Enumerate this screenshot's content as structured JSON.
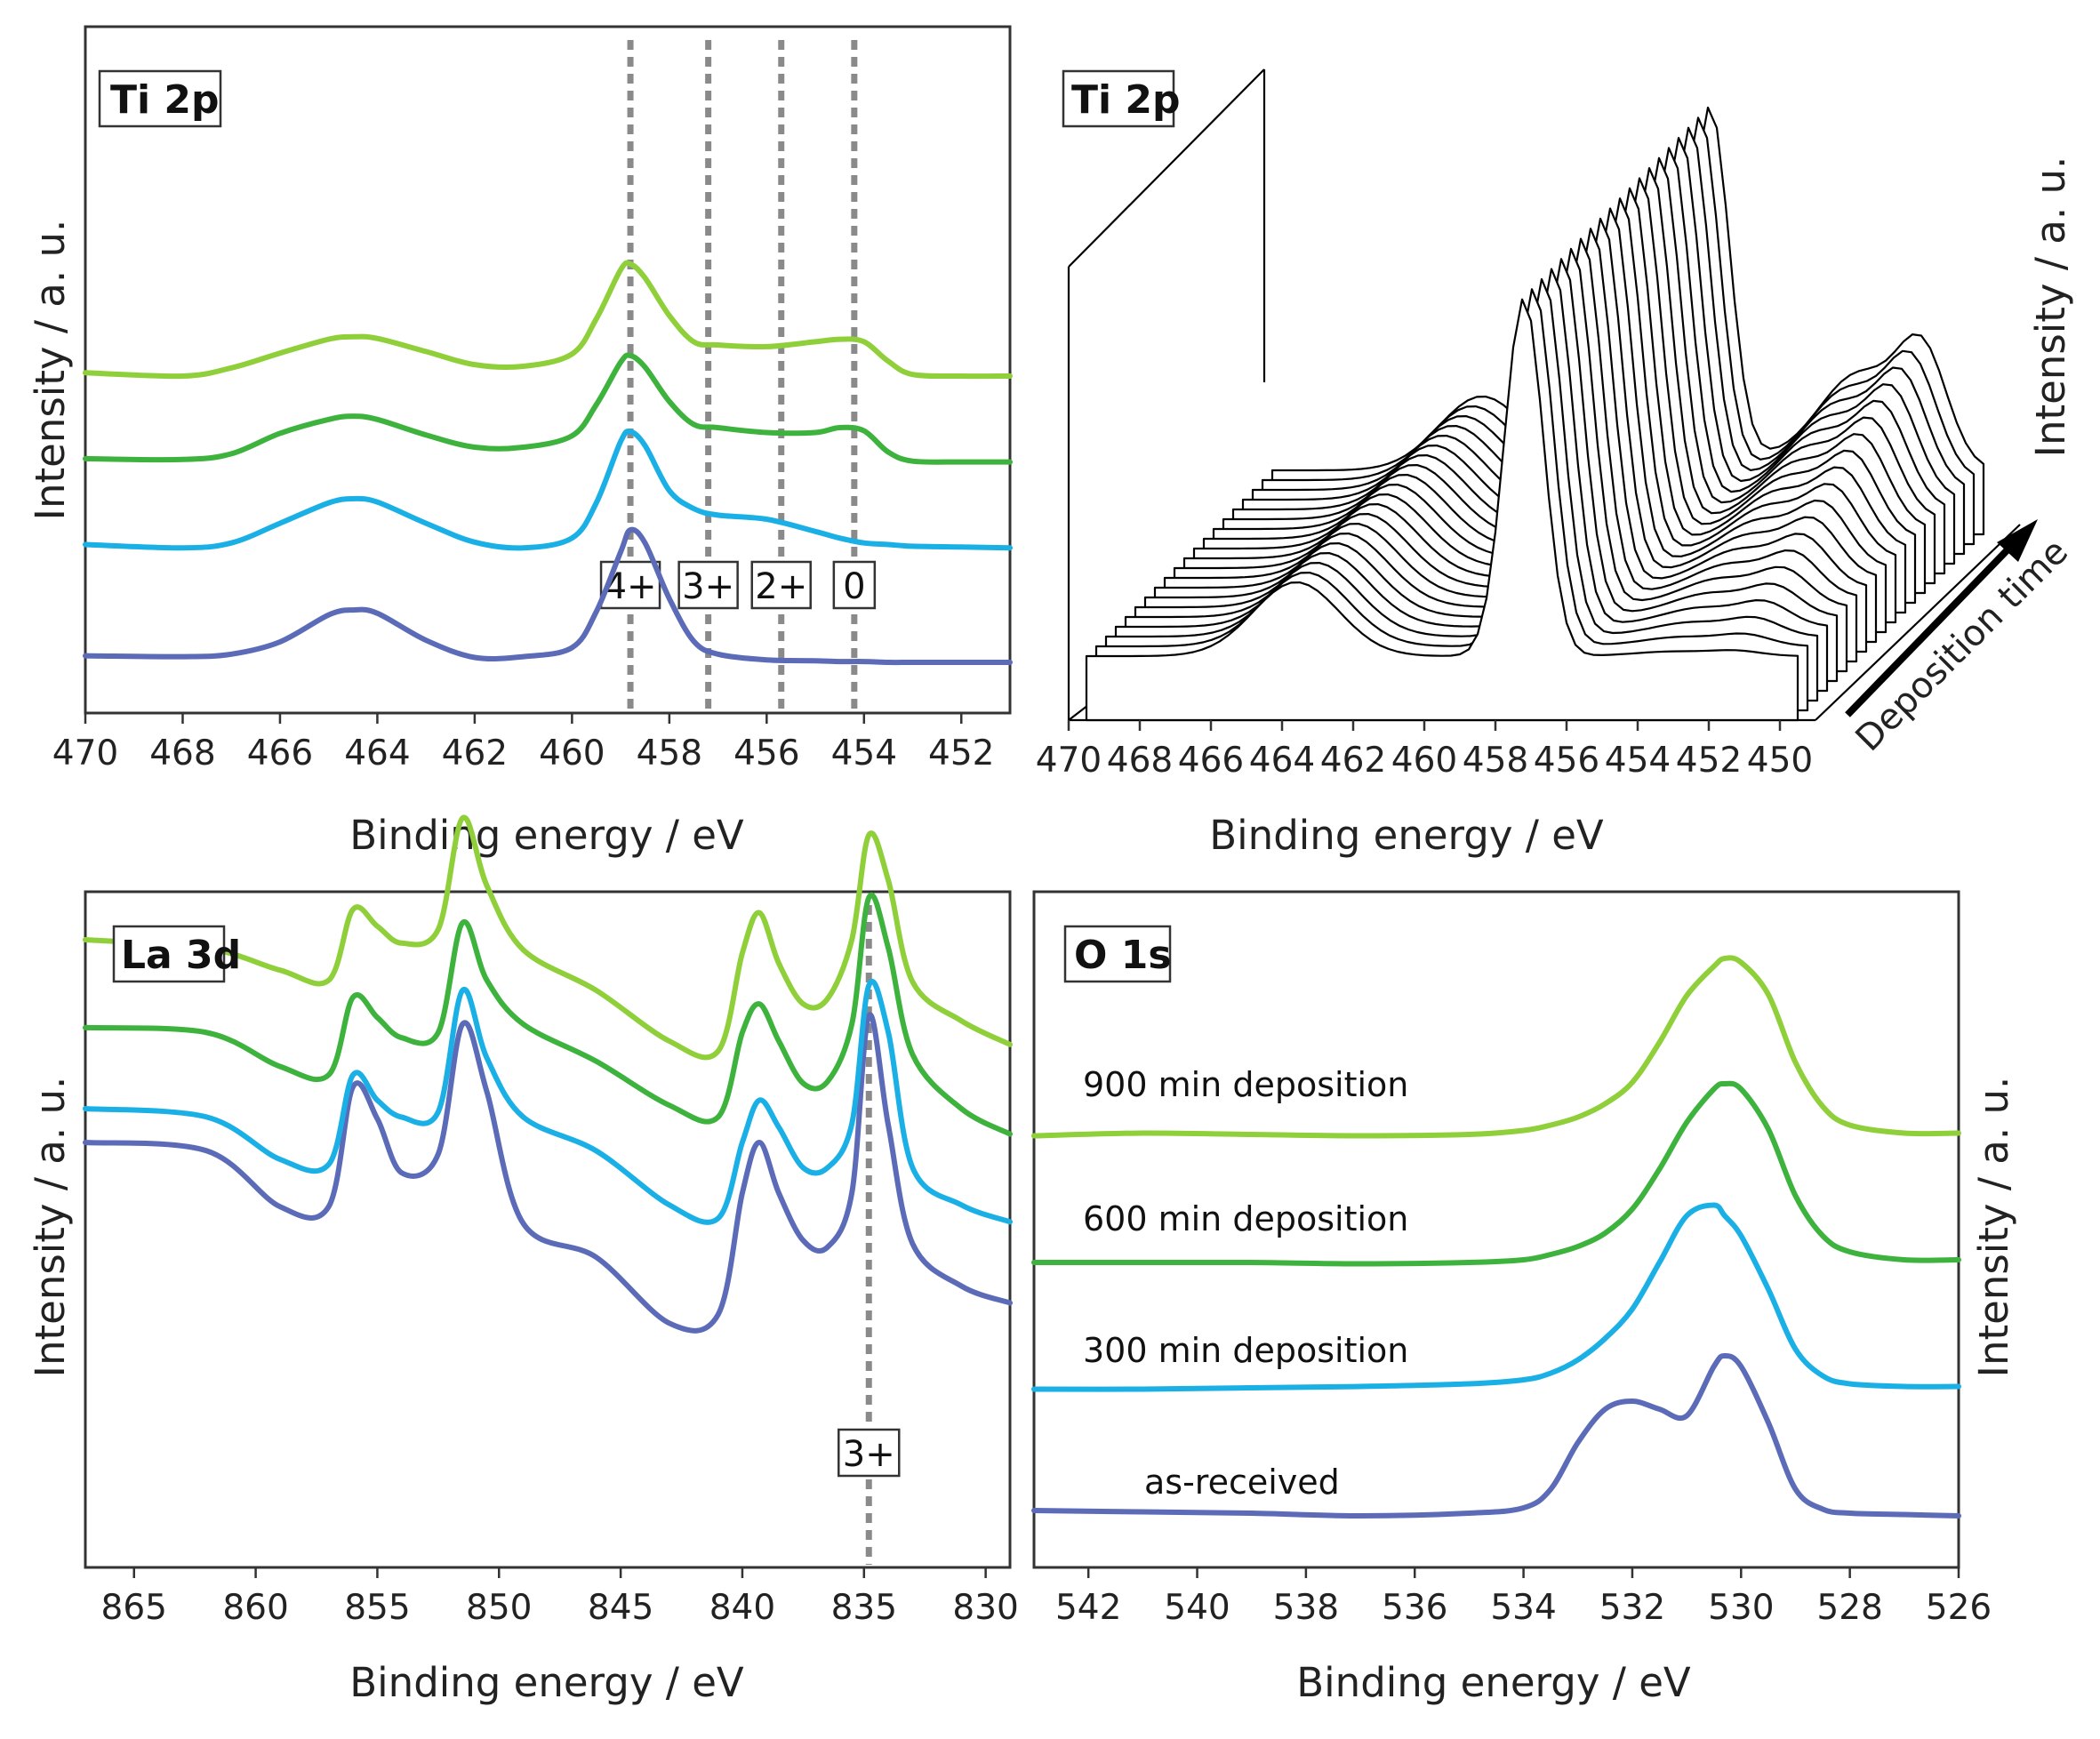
{
  "colors": {
    "as_received": "#5b6bb8",
    "min300": "#1ab0e6",
    "min600": "#3db23d",
    "min900": "#8fcf3a"
  },
  "chart_data": [
    {
      "type": "line",
      "panel_label": "Ti 2p",
      "xlabel": "Binding energy / eV",
      "ylabel": "Intensity / a. u.",
      "xlim": [
        470,
        451
      ],
      "xticks": [
        "470",
        "468",
        "466",
        "464",
        "462",
        "460",
        "458",
        "456",
        "454",
        "452"
      ],
      "markers": [
        {
          "label": "4+",
          "x": 458.8
        },
        {
          "label": "3+",
          "x": 457.2
        },
        {
          "label": "2+",
          "x": 455.7
        },
        {
          "label": "0",
          "x": 454.2
        }
      ],
      "x": [
        470,
        468,
        467,
        466,
        465,
        464.5,
        464,
        463,
        462,
        461,
        460,
        459.5,
        459,
        458.8,
        458.5,
        458,
        457.5,
        457,
        456,
        455,
        454.5,
        454,
        453.5,
        453,
        452,
        451
      ],
      "series": [
        {
          "color_key": "as_received",
          "offset": 0,
          "values": [
            0.08,
            0.07,
            0.1,
            0.25,
            0.58,
            0.64,
            0.6,
            0.27,
            0.06,
            0.07,
            0.18,
            0.62,
            1.35,
            1.62,
            1.46,
            0.78,
            0.26,
            0.1,
            0.03,
            0.02,
            0.01,
            0.01,
            0.0,
            0.0,
            0.0,
            0.0
          ]
        },
        {
          "color_key": "min300",
          "offset": 1.4,
          "values": [
            0.04,
            0.0,
            0.06,
            0.3,
            0.55,
            0.6,
            0.56,
            0.3,
            0.07,
            0.0,
            0.12,
            0.55,
            1.3,
            1.42,
            1.25,
            0.7,
            0.48,
            0.4,
            0.35,
            0.2,
            0.12,
            0.06,
            0.04,
            0.02,
            0.01,
            0.0
          ]
        },
        {
          "color_key": "min600",
          "offset": 2.45,
          "values": [
            0.04,
            0.03,
            0.1,
            0.35,
            0.52,
            0.56,
            0.52,
            0.33,
            0.18,
            0.18,
            0.32,
            0.7,
            1.22,
            1.3,
            1.16,
            0.74,
            0.46,
            0.42,
            0.36,
            0.36,
            0.42,
            0.38,
            0.12,
            0.01,
            0.0,
            0.0
          ]
        },
        {
          "color_key": "min900",
          "offset": 3.5,
          "values": [
            0.04,
            0.0,
            0.1,
            0.28,
            0.45,
            0.48,
            0.46,
            0.3,
            0.14,
            0.12,
            0.27,
            0.7,
            1.3,
            1.37,
            1.2,
            0.74,
            0.42,
            0.38,
            0.36,
            0.42,
            0.45,
            0.42,
            0.18,
            0.02,
            0.0,
            0.0
          ]
        }
      ]
    },
    {
      "type": "waterfall",
      "panel_label": "Ti 2p",
      "xlabel": "Binding energy / eV",
      "ylabel": "Intensity / a. u.",
      "zlabel": "Deposition time",
      "xlim": [
        470,
        449
      ],
      "xticks": [
        "470",
        "468",
        "466",
        "464",
        "462",
        "460",
        "458",
        "456",
        "454",
        "452",
        "450"
      ],
      "n_spectra": 20
    },
    {
      "type": "line",
      "panel_label": "La 3d",
      "xlabel": "Binding energy / eV",
      "ylabel": "Intensity / a. u.",
      "xlim": [
        867,
        829
      ],
      "xticks": [
        "865",
        "860",
        "855",
        "850",
        "845",
        "840",
        "835",
        "830"
      ],
      "markers": [
        {
          "label": "3+",
          "x": 834.8
        }
      ],
      "x": [
        867,
        862,
        859,
        857,
        856,
        855,
        854,
        852.5,
        851.5,
        850.5,
        849,
        846,
        843,
        841,
        840,
        839.3,
        838.5,
        837.5,
        836.5,
        835.5,
        834.8,
        834,
        833,
        831,
        829
      ],
      "series": [
        {
          "color_key": "as_received",
          "offset": 0,
          "values": [
            1.0,
            0.95,
            0.62,
            0.62,
            1.33,
            1.14,
            0.82,
            0.93,
            1.7,
            1.3,
            0.52,
            0.32,
            -0.07,
            -0.02,
            0.7,
            1.0,
            0.7,
            0.42,
            0.38,
            0.7,
            1.75,
            1.1,
            0.4,
            0.15,
            0.05
          ]
        },
        {
          "color_key": "min300",
          "offset": 0.35,
          "values": [
            0.85,
            0.8,
            0.55,
            0.52,
            1.05,
            0.9,
            0.8,
            0.83,
            1.55,
            1.15,
            0.8,
            0.6,
            0.28,
            0.2,
            0.65,
            0.9,
            0.74,
            0.5,
            0.5,
            0.76,
            1.58,
            1.3,
            0.5,
            0.28,
            0.18
          ]
        },
        {
          "color_key": "min600",
          "offset": 0.9,
          "values": [
            0.78,
            0.75,
            0.55,
            0.5,
            0.96,
            0.84,
            0.72,
            0.75,
            1.4,
            1.06,
            0.8,
            0.58,
            0.32,
            0.25,
            0.75,
            0.92,
            0.7,
            0.45,
            0.46,
            0.8,
            1.55,
            1.25,
            0.62,
            0.3,
            0.15
          ]
        },
        {
          "color_key": "min900",
          "offset": 1.5,
          "values": [
            0.7,
            0.65,
            0.52,
            0.46,
            0.88,
            0.78,
            0.68,
            0.76,
            1.42,
            1.02,
            0.64,
            0.4,
            0.1,
            0.04,
            0.62,
            0.86,
            0.56,
            0.32,
            0.35,
            0.7,
            1.32,
            1.05,
            0.45,
            0.22,
            0.08
          ]
        }
      ]
    },
    {
      "type": "line",
      "panel_label": "O 1s",
      "xlabel": "Binding energy / eV",
      "ylabel": "Intensity / a. u.",
      "xlim": [
        543,
        526
      ],
      "xticks": [
        "542",
        "540",
        "538",
        "536",
        "534",
        "532",
        "530",
        "528",
        "526"
      ],
      "x": [
        543,
        541,
        539,
        537,
        535,
        534,
        533.5,
        533,
        532.5,
        532,
        531.5,
        531,
        530.5,
        530.3,
        530,
        529.5,
        529,
        528.5,
        528,
        527,
        526
      ],
      "series": [
        {
          "color_key": "as_received",
          "name": "as-received",
          "offset": 0,
          "values": [
            0.04,
            0.03,
            0.02,
            0.0,
            0.02,
            0.06,
            0.2,
            0.55,
            0.8,
            0.86,
            0.8,
            0.75,
            1.12,
            1.2,
            1.12,
            0.7,
            0.2,
            0.05,
            0.02,
            0.01,
            0.0
          ]
        },
        {
          "color_key": "min300",
          "name": "300 min deposition",
          "offset": 0.95,
          "values": [
            0.0,
            0.0,
            0.01,
            0.02,
            0.04,
            0.07,
            0.12,
            0.22,
            0.38,
            0.6,
            0.95,
            1.3,
            1.38,
            1.3,
            1.15,
            0.75,
            0.3,
            0.1,
            0.04,
            0.02,
            0.02
          ]
        },
        {
          "color_key": "min600",
          "name": "600 min deposition",
          "offset": 1.9,
          "values": [
            0.0,
            0.0,
            0.0,
            -0.01,
            0.0,
            0.02,
            0.06,
            0.12,
            0.22,
            0.4,
            0.7,
            1.05,
            1.3,
            1.34,
            1.3,
            1.0,
            0.5,
            0.2,
            0.08,
            0.02,
            0.02
          ]
        },
        {
          "color_key": "min900",
          "name": "900 min deposition",
          "offset": 2.85,
          "values": [
            0.0,
            0.02,
            0.01,
            0.0,
            0.01,
            0.04,
            0.08,
            0.14,
            0.24,
            0.4,
            0.7,
            1.05,
            1.27,
            1.33,
            1.3,
            1.06,
            0.55,
            0.22,
            0.08,
            0.02,
            0.02
          ]
        }
      ]
    }
  ]
}
